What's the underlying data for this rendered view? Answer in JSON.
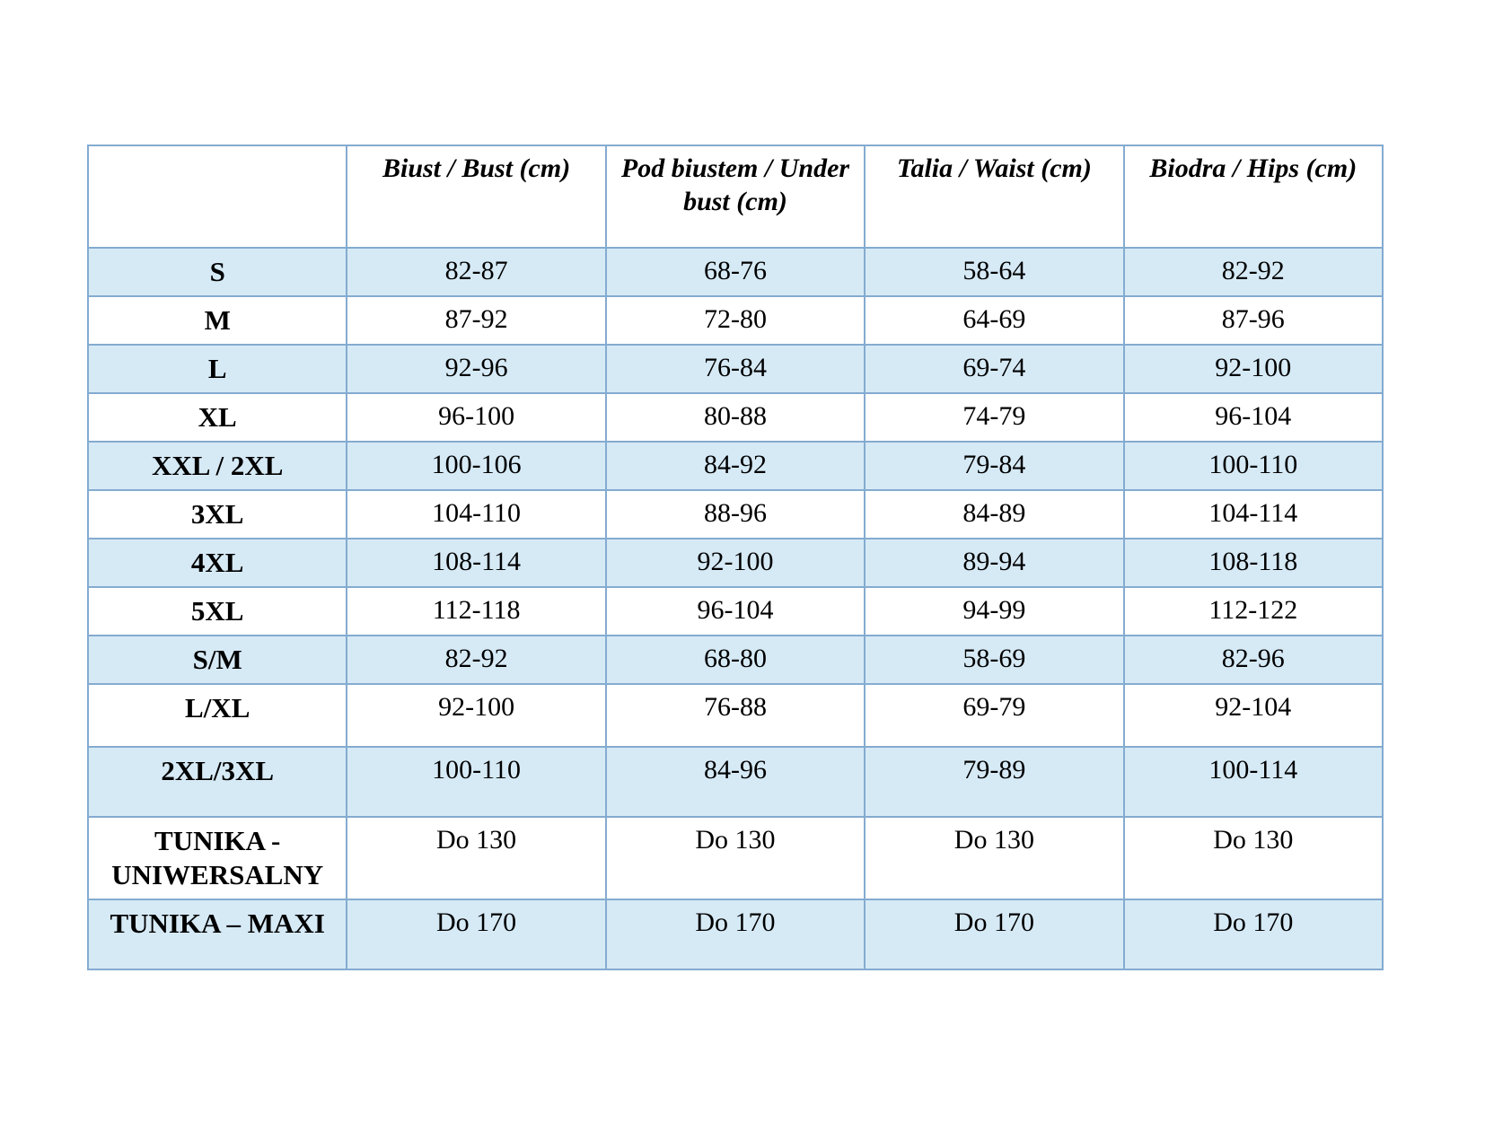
{
  "table": {
    "columns": [
      "",
      "Biust / Bust (cm)",
      "Pod biustem / Under bust (cm)",
      "Talia / Waist (cm)",
      "Biodra / Hips (cm)"
    ],
    "rows": [
      {
        "label": "S",
        "values": [
          "82-87",
          "68-76",
          "58-64",
          "82-92"
        ],
        "shaded": true
      },
      {
        "label": "M",
        "values": [
          "87-92",
          "72-80",
          "64-69",
          "87-96"
        ],
        "shaded": false
      },
      {
        "label": "L",
        "values": [
          "92-96",
          "76-84",
          "69-74",
          "92-100"
        ],
        "shaded": true
      },
      {
        "label": "XL",
        "values": [
          "96-100",
          "80-88",
          "74-79",
          "96-104"
        ],
        "shaded": false
      },
      {
        "label": "XXL / 2XL",
        "values": [
          "100-106",
          "84-92",
          "79-84",
          "100-110"
        ],
        "shaded": true
      },
      {
        "label": "3XL",
        "values": [
          "104-110",
          "88-96",
          "84-89",
          "104-114"
        ],
        "shaded": false
      },
      {
        "label": "4XL",
        "values": [
          "108-114",
          "92-100",
          "89-94",
          "108-118"
        ],
        "shaded": true
      },
      {
        "label": "5XL",
        "values": [
          "112-118",
          "96-104",
          "94-99",
          "112-122"
        ],
        "shaded": false
      },
      {
        "label": "S/M",
        "values": [
          "82-92",
          "68-80",
          "58-69",
          "82-96"
        ],
        "shaded": true
      },
      {
        "label": "L/XL",
        "values": [
          "92-100",
          "76-88",
          "69-79",
          "92-104"
        ],
        "shaded": false
      },
      {
        "label": "2XL/3XL",
        "values": [
          "100-110",
          "84-96",
          "79-89",
          "100-114"
        ],
        "shaded": true
      },
      {
        "label": "TUNIKA - UNIWERSALNY",
        "values": [
          "Do 130",
          "Do 130",
          "Do 130",
          "Do 130"
        ],
        "shaded": false
      },
      {
        "label": "TUNIKA – MAXI",
        "values": [
          "Do 170",
          "Do 170",
          "Do 170",
          "Do 170"
        ],
        "shaded": true
      }
    ]
  },
  "colors": {
    "stripe": "#d6eaf6",
    "border": "#84abd0",
    "text": "#000000",
    "page_background": "#ffffff"
  }
}
